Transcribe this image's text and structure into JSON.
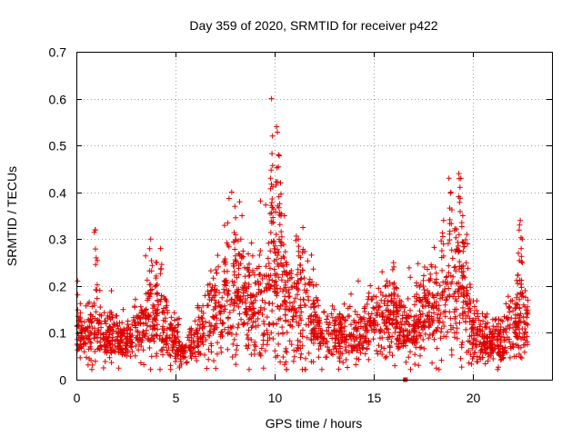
{
  "chart_data": {
    "type": "scatter",
    "title": "Day 359 of 2020, SRMTID for receiver p422",
    "xlabel": "GPS time / hours",
    "ylabel": "SRMTID / TECUs",
    "xlim": [
      0,
      24
    ],
    "ylim": [
      0,
      0.7
    ],
    "xticks": [
      "0",
      "5",
      "10",
      "15",
      "20"
    ],
    "yticks": [
      "0",
      "0.1",
      "0.2",
      "0.3",
      "0.4",
      "0.5",
      "0.6",
      "0.7"
    ],
    "grid": true,
    "marker": "plus",
    "color": "#e00000",
    "envelope": [
      [
        0.0,
        0.1,
        0.06
      ],
      [
        0.5,
        0.09,
        0.05
      ],
      [
        1.0,
        0.11,
        0.07
      ],
      [
        1.5,
        0.09,
        0.05
      ],
      [
        2.0,
        0.09,
        0.05
      ],
      [
        2.5,
        0.08,
        0.04
      ],
      [
        3.0,
        0.1,
        0.05
      ],
      [
        3.5,
        0.12,
        0.07
      ],
      [
        4.0,
        0.13,
        0.09
      ],
      [
        4.5,
        0.11,
        0.06
      ],
      [
        5.0,
        0.08,
        0.04
      ],
      [
        5.5,
        0.06,
        0.03
      ],
      [
        6.0,
        0.08,
        0.04
      ],
      [
        6.5,
        0.12,
        0.07
      ],
      [
        7.0,
        0.15,
        0.09
      ],
      [
        7.5,
        0.17,
        0.1
      ],
      [
        8.0,
        0.18,
        0.12
      ],
      [
        8.5,
        0.17,
        0.12
      ],
      [
        9.0,
        0.16,
        0.12
      ],
      [
        9.5,
        0.16,
        0.12
      ],
      [
        10.0,
        0.19,
        0.15
      ],
      [
        10.5,
        0.16,
        0.12
      ],
      [
        11.0,
        0.15,
        0.12
      ],
      [
        11.5,
        0.16,
        0.13
      ],
      [
        12.0,
        0.12,
        0.07
      ],
      [
        12.5,
        0.1,
        0.05
      ],
      [
        13.0,
        0.1,
        0.05
      ],
      [
        13.5,
        0.1,
        0.06
      ],
      [
        14.0,
        0.09,
        0.05
      ],
      [
        14.5,
        0.1,
        0.05
      ],
      [
        15.0,
        0.12,
        0.06
      ],
      [
        15.5,
        0.13,
        0.07
      ],
      [
        16.0,
        0.14,
        0.08
      ],
      [
        16.5,
        0.11,
        0.06
      ],
      [
        17.0,
        0.1,
        0.06
      ],
      [
        17.5,
        0.14,
        0.08
      ],
      [
        18.0,
        0.15,
        0.1
      ],
      [
        18.5,
        0.18,
        0.12
      ],
      [
        19.0,
        0.19,
        0.14
      ],
      [
        19.5,
        0.17,
        0.12
      ],
      [
        20.0,
        0.1,
        0.06
      ],
      [
        20.5,
        0.09,
        0.05
      ],
      [
        21.0,
        0.08,
        0.04
      ],
      [
        21.5,
        0.07,
        0.04
      ],
      [
        22.0,
        0.12,
        0.07
      ],
      [
        22.5,
        0.12,
        0.07
      ],
      [
        22.8,
        0.12,
        0.06
      ]
    ],
    "spikes": [
      [
        0.95,
        0.32
      ],
      [
        1.0,
        0.26
      ],
      [
        3.75,
        0.3
      ],
      [
        4.25,
        0.28
      ],
      [
        4.05,
        0.25
      ],
      [
        8.0,
        0.37
      ],
      [
        8.3,
        0.3
      ],
      [
        9.85,
        0.6
      ],
      [
        9.9,
        0.52
      ],
      [
        10.1,
        0.54
      ],
      [
        10.2,
        0.48
      ],
      [
        9.8,
        0.43
      ],
      [
        10.3,
        0.42
      ],
      [
        10.5,
        0.35
      ],
      [
        11.2,
        0.3
      ],
      [
        16.0,
        0.25
      ],
      [
        18.8,
        0.43
      ],
      [
        18.9,
        0.4
      ],
      [
        19.3,
        0.44
      ],
      [
        19.4,
        0.43
      ],
      [
        19.5,
        0.35
      ],
      [
        19.7,
        0.31
      ],
      [
        22.4,
        0.34
      ],
      [
        22.5,
        0.3
      ],
      [
        22.3,
        0.27
      ]
    ],
    "outliers": [
      [
        16.6,
        0.0
      ]
    ],
    "n_points": 2400,
    "seed": 359
  }
}
